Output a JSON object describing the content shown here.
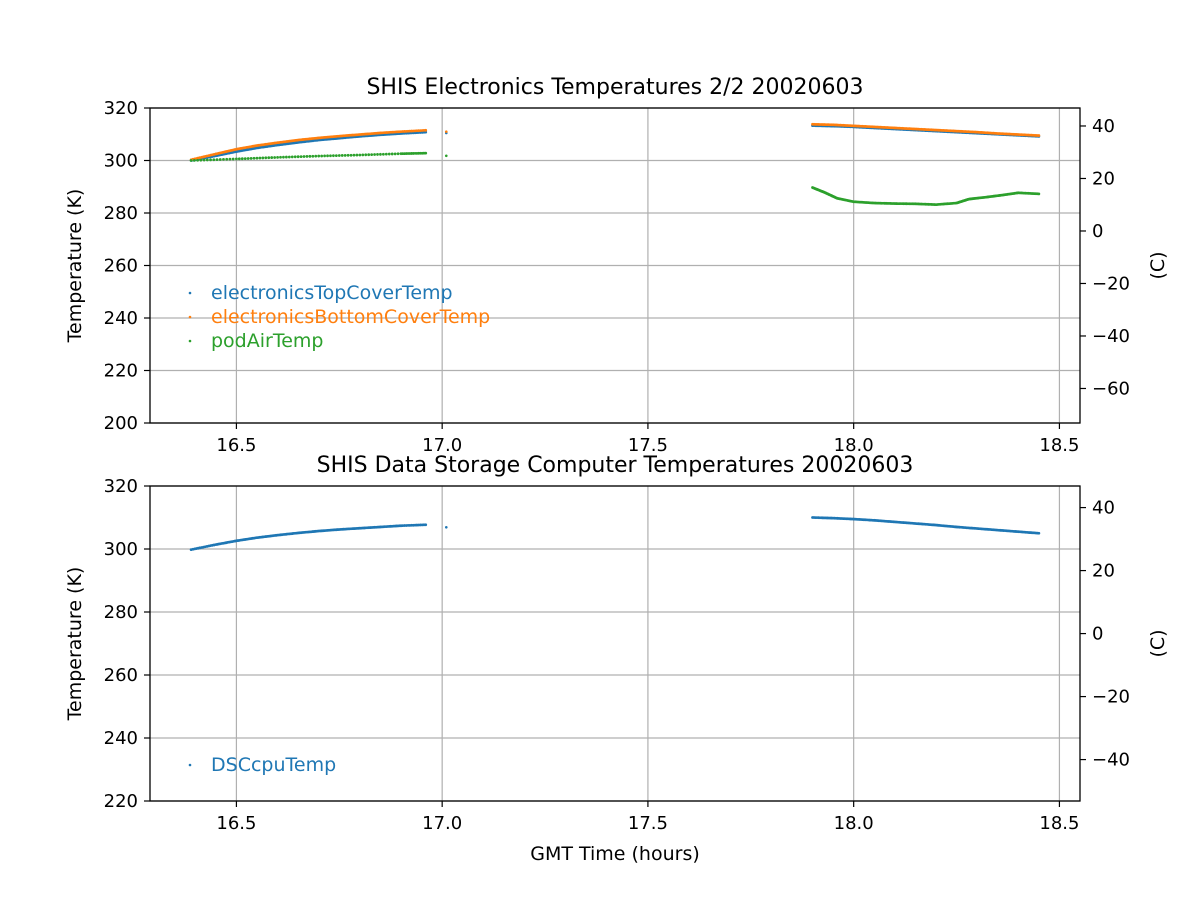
{
  "chart_data": [
    {
      "type": "scatter",
      "title": "SHIS Electronics Temperatures 2/2 20020603",
      "xlabel": "",
      "ylabel": "Temperature (K)",
      "y2label": "(C)",
      "xlim": [
        16.29,
        18.55
      ],
      "ylim": [
        200,
        320
      ],
      "xticks": [
        "16.5",
        "17.0",
        "17.5",
        "18.0",
        "18.5"
      ],
      "yticks": [
        "200",
        "220",
        "240",
        "260",
        "280",
        "300",
        "320"
      ],
      "y2ticks": [
        "−60",
        "−40",
        "−20",
        "0",
        "20",
        "40"
      ],
      "grid": true,
      "legend_position": "lower-left",
      "series": [
        {
          "name": "electronicsTopCoverTemp",
          "color": "#1f77b4",
          "segments": [
            [
              [
                16.39,
                300.0
              ],
              [
                16.45,
                301.8
              ],
              [
                16.5,
                303.4
              ],
              [
                16.55,
                304.8
              ],
              [
                16.6,
                305.9
              ],
              [
                16.65,
                306.9
              ],
              [
                16.7,
                307.8
              ],
              [
                16.75,
                308.5
              ],
              [
                16.8,
                309.2
              ],
              [
                16.85,
                309.8
              ],
              [
                16.9,
                310.3
              ],
              [
                16.96,
                310.8
              ]
            ],
            [
              [
                17.01,
                310.5
              ]
            ],
            [
              [
                17.9,
                313.3
              ],
              [
                17.95,
                313.1
              ],
              [
                18.0,
                312.8
              ],
              [
                18.05,
                312.4
              ],
              [
                18.1,
                312.0
              ],
              [
                18.15,
                311.6
              ],
              [
                18.2,
                311.2
              ],
              [
                18.25,
                310.8
              ],
              [
                18.3,
                310.4
              ],
              [
                18.35,
                310.0
              ],
              [
                18.4,
                309.6
              ],
              [
                18.45,
                309.2
              ]
            ]
          ]
        },
        {
          "name": "electronicsBottomCoverTemp",
          "color": "#ff7f0e",
          "segments": [
            [
              [
                16.39,
                300.3
              ],
              [
                16.45,
                302.5
              ],
              [
                16.5,
                304.3
              ],
              [
                16.55,
                305.7
              ],
              [
                16.6,
                306.8
              ],
              [
                16.65,
                307.8
              ],
              [
                16.7,
                308.6
              ],
              [
                16.75,
                309.3
              ],
              [
                16.8,
                309.9
              ],
              [
                16.85,
                310.5
              ],
              [
                16.9,
                311.0
              ],
              [
                16.96,
                311.5
              ]
            ],
            [
              [
                17.01,
                311.0
              ]
            ],
            [
              [
                17.9,
                313.8
              ],
              [
                17.95,
                313.6
              ],
              [
                18.0,
                313.2
              ],
              [
                18.05,
                312.8
              ],
              [
                18.1,
                312.4
              ],
              [
                18.15,
                312.0
              ],
              [
                18.2,
                311.6
              ],
              [
                18.25,
                311.2
              ],
              [
                18.3,
                310.8
              ],
              [
                18.35,
                310.3
              ],
              [
                18.4,
                309.9
              ],
              [
                18.45,
                309.5
              ]
            ]
          ]
        },
        {
          "name": "podAirTemp",
          "color": "#2ca02c",
          "segments": [
            [
              [
                16.39,
                300.0
              ],
              [
                16.5,
                300.6
              ],
              [
                16.6,
                301.2
              ],
              [
                16.7,
                301.7
              ],
              [
                16.8,
                302.1
              ],
              [
                16.9,
                302.6
              ],
              [
                16.96,
                302.8
              ]
            ],
            [
              [
                17.01,
                301.8
              ]
            ],
            [
              [
                17.9,
                289.7
              ],
              [
                17.93,
                287.8
              ],
              [
                17.96,
                285.6
              ],
              [
                18.0,
                284.3
              ],
              [
                18.05,
                283.8
              ],
              [
                18.1,
                283.6
              ],
              [
                18.15,
                283.5
              ],
              [
                18.2,
                283.2
              ],
              [
                18.25,
                283.8
              ],
              [
                18.28,
                285.3
              ],
              [
                18.32,
                286.0
              ],
              [
                18.36,
                286.8
              ],
              [
                18.4,
                287.7
              ],
              [
                18.45,
                287.3
              ]
            ]
          ]
        }
      ]
    },
    {
      "type": "scatter",
      "title": "SHIS Data Storage Computer Temperatures 20020603",
      "xlabel": "GMT Time (hours)",
      "ylabel": "Temperature (K)",
      "y2label": "(C)",
      "xlim": [
        16.29,
        18.55
      ],
      "ylim": [
        220,
        320
      ],
      "xticks": [
        "16.5",
        "17.0",
        "17.5",
        "18.0",
        "18.5"
      ],
      "yticks": [
        "220",
        "240",
        "260",
        "280",
        "300",
        "320"
      ],
      "y2ticks": [
        "−40",
        "−20",
        "0",
        "20",
        "40"
      ],
      "grid": true,
      "legend_position": "lower-left",
      "series": [
        {
          "name": "DSCcpuTemp",
          "color": "#1f77b4",
          "segments": [
            [
              [
                16.39,
                299.8
              ],
              [
                16.45,
                301.4
              ],
              [
                16.5,
                302.6
              ],
              [
                16.55,
                303.6
              ],
              [
                16.6,
                304.4
              ],
              [
                16.65,
                305.1
              ],
              [
                16.7,
                305.7
              ],
              [
                16.75,
                306.2
              ],
              [
                16.8,
                306.6
              ],
              [
                16.85,
                307.0
              ],
              [
                16.9,
                307.4
              ],
              [
                16.96,
                307.7
              ]
            ],
            [
              [
                17.01,
                306.9
              ]
            ],
            [
              [
                17.9,
                310.0
              ],
              [
                17.95,
                309.8
              ],
              [
                18.0,
                309.5
              ],
              [
                18.05,
                309.1
              ],
              [
                18.1,
                308.6
              ],
              [
                18.15,
                308.1
              ],
              [
                18.2,
                307.6
              ],
              [
                18.25,
                307.0
              ],
              [
                18.3,
                306.5
              ],
              [
                18.35,
                306.0
              ],
              [
                18.4,
                305.5
              ],
              [
                18.45,
                305.0
              ]
            ]
          ]
        }
      ]
    }
  ]
}
